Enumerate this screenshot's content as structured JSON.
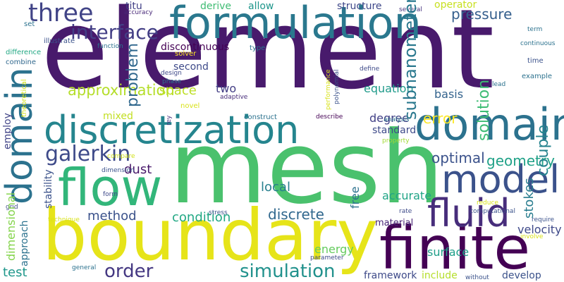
{
  "word_cloud": {
    "background": "#ffffff",
    "words": [
      {
        "key": "element",
        "text": "element",
        "color": "#481a6c"
      },
      {
        "key": "mesh",
        "text": "mesh",
        "color": "#4ac16d"
      },
      {
        "key": "boundary",
        "text": "boundary",
        "color": "#e6e419"
      },
      {
        "key": "formulation",
        "text": "formulation",
        "color": "#2a788e"
      },
      {
        "key": "discretization",
        "text": "discretization",
        "color": "#25858e"
      },
      {
        "key": "finite",
        "text": "finite",
        "color": "#440154"
      },
      {
        "key": "flow",
        "text": "flow",
        "color": "#32b67a"
      },
      {
        "key": "domain",
        "text": "domain",
        "color": "#2c728e"
      },
      {
        "key": "model",
        "text": "model",
        "color": "#3b528b"
      },
      {
        "key": "fluid",
        "text": "fluid",
        "color": "#472d7b"
      },
      {
        "key": "three",
        "text": "three",
        "color": "#414487"
      },
      {
        "key": "galerkin",
        "text": "galerkin",
        "color": "#3e4a89"
      },
      {
        "key": "interface",
        "text": "interface",
        "color": "#433e85"
      },
      {
        "key": "order",
        "text": "order",
        "color": "#453882"
      },
      {
        "key": "simulation",
        "text": "simulation",
        "color": "#21918c"
      },
      {
        "key": "discrete",
        "text": "discrete",
        "color": "#31688e"
      },
      {
        "key": "approximation",
        "text": "approximation",
        "color": "#b5de2b"
      },
      {
        "key": "problem",
        "text": "problem",
        "color": "#31688e"
      },
      {
        "key": "pressure",
        "text": "pressure",
        "color": "#355f8d"
      },
      {
        "key": "couple",
        "text": "couple",
        "color": "#25838e"
      },
      {
        "key": "subnanometer",
        "text": "subnanometer",
        "color": "#2a788e"
      },
      {
        "key": "solution",
        "text": "solution",
        "color": "#3dbc74"
      },
      {
        "key": "optimal",
        "text": "optimal",
        "color": "#3b528b"
      },
      {
        "key": "geometry",
        "text": "geometry",
        "color": "#1fa187"
      },
      {
        "key": "stokes",
        "text": "stokes",
        "color": "#287c8e"
      },
      {
        "key": "error",
        "text": "error",
        "color": "#fde725"
      },
      {
        "key": "local",
        "text": "local",
        "color": "#277f8e"
      },
      {
        "key": "method",
        "text": "method",
        "color": "#3b528b"
      },
      {
        "key": "condition",
        "text": "condition",
        "color": "#22a884"
      },
      {
        "key": "dust",
        "text": "dust",
        "color": "#48186a"
      },
      {
        "key": "space",
        "text": "space",
        "color": "#bddf26"
      },
      {
        "key": "test",
        "text": "test",
        "color": "#1f978b"
      },
      {
        "key": "surface",
        "text": "surface",
        "color": "#1f9e89"
      },
      {
        "key": "velocity",
        "text": "velocity",
        "color": "#3e4989"
      },
      {
        "key": "develop",
        "text": "develop",
        "color": "#3b528b"
      },
      {
        "key": "framework",
        "text": "framework",
        "color": "#3e4a89"
      },
      {
        "key": "include",
        "text": "include",
        "color": "#b5de2b"
      },
      {
        "key": "material",
        "text": "material",
        "color": "#482576"
      },
      {
        "key": "energy",
        "text": "energy",
        "color": "#65cb5e"
      },
      {
        "key": "free",
        "text": "free",
        "color": "#2c728e"
      },
      {
        "key": "accurate",
        "text": "accurate",
        "color": "#20a486"
      },
      {
        "key": "two",
        "text": "two",
        "color": "#433e85"
      },
      {
        "key": "equation",
        "text": "equation",
        "color": "#1f9a8a"
      },
      {
        "key": "degree",
        "text": "degree",
        "color": "#424086"
      },
      {
        "key": "standard",
        "text": "standard",
        "color": "#3e4a89"
      },
      {
        "key": "basis",
        "text": "basis",
        "color": "#33638d"
      },
      {
        "key": "titu",
        "text": "titu",
        "color": "#424086"
      },
      {
        "key": "derive",
        "text": "derive",
        "color": "#3fbc73"
      },
      {
        "key": "allow",
        "text": "allow",
        "color": "#1f968b"
      },
      {
        "key": "structure",
        "text": "structure",
        "color": "#3f4889"
      },
      {
        "key": "operator",
        "text": "operator",
        "color": "#c8e020"
      },
      {
        "key": "discontinuous",
        "text": "discontinuous",
        "color": "#440154"
      },
      {
        "key": "second",
        "text": "second",
        "color": "#3e4a89"
      },
      {
        "key": "mixed",
        "text": "mixed",
        "color": "#c2df23"
      },
      {
        "key": "dimensional",
        "text": "dimensional",
        "color": "#84d44b"
      },
      {
        "key": "approach",
        "text": "approach",
        "color": "#2c728e"
      },
      {
        "key": "stability",
        "text": "stability",
        "color": "#3b528b"
      },
      {
        "key": "employ",
        "text": "employ",
        "color": "#414487"
      },
      {
        "key": "theoretical",
        "text": "theoretical",
        "color": "#d2e21b"
      },
      {
        "key": "efficiency",
        "text": "efficiency",
        "color": "#482878"
      },
      {
        "key": "combine",
        "text": "combine",
        "color": "#31688e"
      },
      {
        "key": "difference",
        "text": "difference",
        "color": "#22a884"
      },
      {
        "key": "set",
        "text": "set",
        "color": "#2c728e"
      },
      {
        "key": "accuracy",
        "text": "accuracy",
        "color": "#482878"
      },
      {
        "key": "illustrate",
        "text": "illustrate",
        "color": "#3b528b"
      },
      {
        "key": "function",
        "text": "function",
        "color": "#2c728e"
      },
      {
        "key": "solver",
        "text": "solver",
        "color": "#fde725"
      },
      {
        "key": "design",
        "text": "design",
        "color": "#3e4a89"
      },
      {
        "key": "phase",
        "text": "phase",
        "color": "#2c728e"
      },
      {
        "key": "novel",
        "text": "novel",
        "color": "#d8e219"
      },
      {
        "key": "adaptive",
        "text": "adaptive",
        "color": "#472c7a"
      },
      {
        "key": "type",
        "text": "type",
        "color": "#2c728e"
      },
      {
        "key": "polynomial",
        "text": "polynomial",
        "color": "#3b528b"
      },
      {
        "key": "performance",
        "text": "performance",
        "color": "#d8e219"
      },
      {
        "key": "define",
        "text": "define",
        "color": "#3e4a89"
      },
      {
        "key": "several",
        "text": "several",
        "color": "#46327e"
      },
      {
        "key": "term",
        "text": "term",
        "color": "#2c728e"
      },
      {
        "key": "continuous",
        "text": "continuous",
        "color": "#2c728e"
      },
      {
        "key": "time",
        "text": "time",
        "color": "#3b528b"
      },
      {
        "key": "example",
        "text": "example",
        "color": "#2c728e"
      },
      {
        "key": "lead",
        "text": "lead",
        "color": "#2c728e"
      },
      {
        "key": "construct",
        "text": "construct",
        "color": "#2c728e"
      },
      {
        "key": "describe",
        "text": "describe",
        "color": "#440154"
      },
      {
        "key": "analysis",
        "text": "analysis",
        "color": "#2c728e"
      },
      {
        "key": "property",
        "text": "property",
        "color": "#a2da37"
      },
      {
        "key": "rey",
        "text": "rey",
        "color": "#46327e"
      },
      {
        "key": "compare",
        "text": "compare",
        "color": "#d2e21b"
      },
      {
        "key": "dimension",
        "text": "dimension",
        "color": "#3b528b"
      },
      {
        "key": "form",
        "text": "form",
        "color": "#3e4a89"
      },
      {
        "key": "grid",
        "text": "grid",
        "color": "#3e4a89"
      },
      {
        "key": "stress",
        "text": "stress",
        "color": "#3b528b"
      },
      {
        "key": "technique",
        "text": "technique",
        "color": "#d8e219"
      },
      {
        "key": "rate",
        "text": "rate",
        "color": "#3e4a89"
      },
      {
        "key": "reduce",
        "text": "reduce",
        "color": "#d8e219"
      },
      {
        "key": "computational",
        "text": "computational",
        "color": "#3b528b"
      },
      {
        "key": "require",
        "text": "require",
        "color": "#3b528b"
      },
      {
        "key": "involve",
        "text": "involve",
        "color": "#d8e219"
      },
      {
        "key": "parameter",
        "text": "parameter",
        "color": "#3e4a89"
      },
      {
        "key": "general",
        "text": "general",
        "color": "#2c728e"
      },
      {
        "key": "without",
        "text": "without",
        "color": "#3b528b"
      }
    ]
  }
}
